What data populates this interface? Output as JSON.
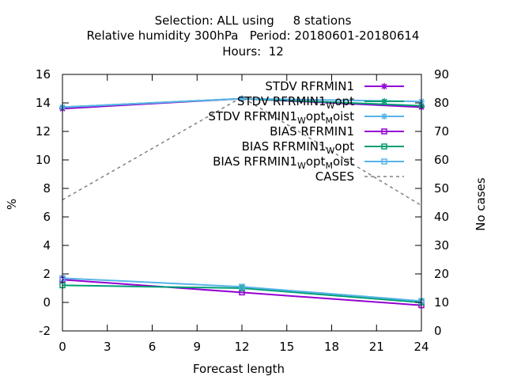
{
  "chart_data": {
    "type": "line",
    "title_lines": [
      "Selection: ALL using     8 stations",
      "Relative humidity 300hPa   Period: 20180601-20180614",
      "Hours:  12"
    ],
    "xlabel": "Forecast length",
    "ylabel": "%",
    "y2label": "No cases",
    "xlim": [
      0,
      24
    ],
    "ylim": [
      -2,
      16
    ],
    "y2lim": [
      0,
      90
    ],
    "xticks": [
      0,
      3,
      6,
      9,
      12,
      15,
      18,
      21,
      24
    ],
    "yticks": [
      -2,
      0,
      2,
      4,
      6,
      8,
      10,
      12,
      14,
      16
    ],
    "y2ticks": [
      0,
      10,
      20,
      30,
      40,
      50,
      60,
      70,
      80,
      90
    ],
    "grid": false,
    "legend_position": "top-right",
    "series": [
      {
        "name": "STDV RFRMIN1",
        "legend_parts": [
          [
            "STDV RFRMIN1",
            ""
          ]
        ],
        "axis": "y1",
        "color": "#9400d3",
        "marker": "star",
        "dash": false,
        "x": [
          0,
          12,
          24
        ],
        "values": [
          13.6,
          14.3,
          13.7
        ]
      },
      {
        "name": "STDV RFRMIN1_W_opt",
        "legend_parts": [
          [
            "STDV RFRMIN1",
            ""
          ],
          [
            "W",
            "sub"
          ],
          [
            "opt",
            ""
          ]
        ],
        "axis": "y1",
        "color": "#009e73",
        "marker": "star",
        "dash": false,
        "x": [
          0,
          12,
          24
        ],
        "values": [
          13.7,
          14.3,
          13.8
        ]
      },
      {
        "name": "STDV RFRMIN1_W_opt_M_oist",
        "legend_parts": [
          [
            "STDV RFRMIN1",
            ""
          ],
          [
            "W",
            "sub"
          ],
          [
            "opt",
            ""
          ],
          [
            "M",
            "sub"
          ],
          [
            "oist",
            ""
          ]
        ],
        "axis": "y1",
        "color": "#56b4e9",
        "marker": "star",
        "dash": false,
        "x": [
          0,
          12,
          24
        ],
        "values": [
          13.7,
          14.3,
          14.1
        ]
      },
      {
        "name": "BIAS RFRMIN1",
        "legend_parts": [
          [
            "BIAS RFRMIN1",
            ""
          ]
        ],
        "axis": "y1",
        "color": "#9400d3",
        "marker": "square",
        "dash": false,
        "x": [
          0,
          12,
          24
        ],
        "values": [
          1.6,
          0.7,
          -0.2
        ]
      },
      {
        "name": "BIAS RFRMIN1_W_opt",
        "legend_parts": [
          [
            "BIAS RFRMIN1",
            ""
          ],
          [
            "W",
            "sub"
          ],
          [
            "opt",
            ""
          ]
        ],
        "axis": "y1",
        "color": "#009e73",
        "marker": "square",
        "dash": false,
        "x": [
          0,
          12,
          24
        ],
        "values": [
          1.2,
          1.0,
          0.0
        ]
      },
      {
        "name": "BIAS RFRMIN1_W_opt_M_oist",
        "legend_parts": [
          [
            "BIAS RFRMIN1",
            ""
          ],
          [
            "W",
            "sub"
          ],
          [
            "opt",
            ""
          ],
          [
            "M",
            "sub"
          ],
          [
            "oist",
            ""
          ]
        ],
        "axis": "y1",
        "color": "#56b4e9",
        "marker": "square",
        "dash": false,
        "x": [
          0,
          12,
          24
        ],
        "values": [
          1.7,
          1.1,
          0.1
        ]
      },
      {
        "name": "CASES",
        "legend_parts": [
          [
            "CASES",
            ""
          ]
        ],
        "axis": "y2",
        "color": "#808080",
        "marker": "none",
        "dash": true,
        "x": [
          0,
          12,
          24
        ],
        "values": [
          46,
          82,
          44
        ]
      }
    ]
  }
}
